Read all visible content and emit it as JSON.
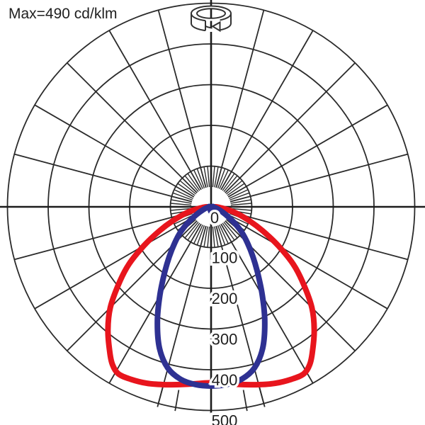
{
  "chart_data": {
    "type": "polar",
    "subtype": "photometric-intensity-distribution",
    "title": "Max=490 cd/klm",
    "unit": "cd/klm",
    "max_value": 490,
    "background": "#ffffff",
    "grid": {
      "color": "#2b2b2b",
      "axis_color": "#1c1c1c",
      "label_color": "#1f1f1f",
      "major_radial_step_deg": 15,
      "minor_radial_step_deg": 5,
      "zero_direction": "down",
      "nadir_tick_angles_deg": [
        -15,
        -10,
        10,
        15
      ]
    },
    "radial_axis": {
      "tick_labels": [
        "0",
        "100",
        "200",
        "300",
        "400",
        "500"
      ],
      "tick_values": [
        0,
        100,
        200,
        300,
        400,
        500
      ],
      "min": 0,
      "max": 500,
      "step": 100
    },
    "series": [
      {
        "name": "curve-red-wide-beam",
        "color": "#e8151d",
        "apex_intensity": 5,
        "profile_deg_cd": [
          [
            0,
            432
          ],
          [
            5,
            436
          ],
          [
            10,
            443
          ],
          [
            15,
            452
          ],
          [
            20,
            461
          ],
          [
            25,
            467
          ],
          [
            29,
            469
          ],
          [
            32,
            457
          ],
          [
            35,
            434
          ],
          [
            40,
            394
          ],
          [
            45,
            350
          ],
          [
            50,
            297
          ],
          [
            55,
            247
          ],
          [
            60,
            190
          ],
          [
            65,
            140
          ],
          [
            70,
            100
          ],
          [
            75,
            68
          ],
          [
            80,
            42
          ],
          [
            85,
            22
          ],
          [
            90,
            10
          ]
        ]
      },
      {
        "name": "curve-blue-narrow-beam",
        "color": "#2e3192",
        "apex_intensity": 12,
        "profile_deg_cd": [
          [
            0,
            440
          ],
          [
            5,
            438
          ],
          [
            10,
            430
          ],
          [
            15,
            410
          ],
          [
            20,
            370
          ],
          [
            25,
            312
          ],
          [
            30,
            252
          ],
          [
            35,
            200
          ],
          [
            40,
            160
          ],
          [
            45,
            127
          ],
          [
            50,
            100
          ],
          [
            55,
            72
          ],
          [
            60,
            48
          ],
          [
            65,
            32
          ],
          [
            70,
            21
          ],
          [
            75,
            14
          ],
          [
            80,
            9
          ],
          [
            85,
            6
          ],
          [
            90,
            4
          ]
        ]
      }
    ],
    "symbol": "luminaire-rotation-symbol"
  }
}
